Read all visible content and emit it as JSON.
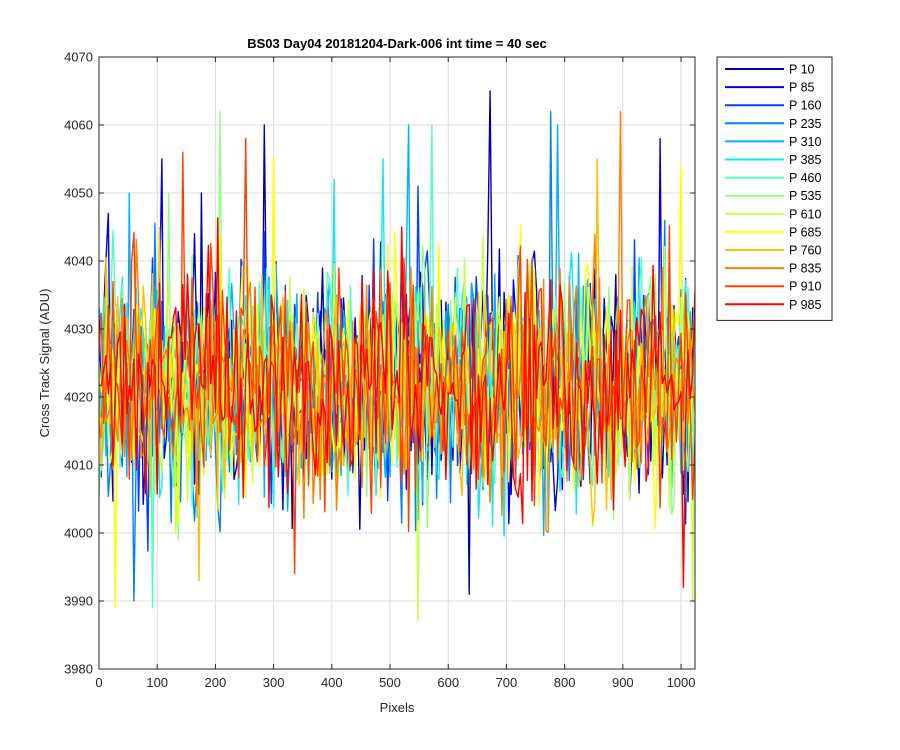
{
  "chart_data": {
    "type": "line",
    "title": "BS03 Day04 20181204-Dark-006 int time = 40 sec",
    "xlabel": "Pixels",
    "ylabel": "Cross Track Signal (ADU)",
    "xlim": [
      0,
      1024
    ],
    "ylim": [
      3980,
      4070
    ],
    "xticks": [
      0,
      100,
      200,
      300,
      400,
      500,
      600,
      700,
      800,
      900,
      1000
    ],
    "yticks": [
      3980,
      3990,
      4000,
      4010,
      4020,
      4030,
      4040,
      4050,
      4060,
      4070
    ],
    "grid": true,
    "legend_position": "outside-top-right",
    "x_step": 4,
    "series": [
      {
        "name": "P 10",
        "color": "#0000a8",
        "mean": 4022,
        "spread": 8.5,
        "spikes": [
          [
            672,
            4065
          ],
          [
            636,
            3991
          ],
          [
            284,
            4060
          ],
          [
            176,
            4050
          ]
        ]
      },
      {
        "name": "P 85",
        "color": "#0000e0",
        "mean": 4022,
        "spread": 8.5,
        "spikes": [
          [
            16,
            4047
          ],
          [
            964,
            4058
          ],
          [
            108,
            4055
          ]
        ]
      },
      {
        "name": "P 160",
        "color": "#0040ff",
        "mean": 4022,
        "spread": 8.5,
        "spikes": [
          [
            548,
            4051
          ],
          [
            912,
            4005
          ]
        ]
      },
      {
        "name": "P 235",
        "color": "#0080ff",
        "mean": 4022,
        "spread": 8.5,
        "spikes": [
          [
            776,
            4062
          ],
          [
            60,
            3990
          ]
        ]
      },
      {
        "name": "P 310",
        "color": "#00b0ff",
        "mean": 4022,
        "spread": 8.5,
        "spikes": [
          [
            532,
            4060
          ],
          [
            788,
            4060
          ],
          [
            52,
            4050
          ]
        ]
      },
      {
        "name": "P 385",
        "color": "#10e8f0",
        "mean": 4022,
        "spread": 8.5,
        "spikes": [
          [
            404,
            4052
          ],
          [
            488,
            4055
          ]
        ]
      },
      {
        "name": "P 460",
        "color": "#50ffc0",
        "mean": 4022,
        "spread": 8.5,
        "spikes": [
          [
            92,
            3989
          ],
          [
            572,
            4060
          ]
        ]
      },
      {
        "name": "P 535",
        "color": "#90ff80",
        "mean": 4022,
        "spread": 8.5,
        "spikes": [
          [
            208,
            4062
          ],
          [
            120,
            4050
          ]
        ]
      },
      {
        "name": "P 610",
        "color": "#c8ff40",
        "mean": 4022,
        "spread": 8.5,
        "spikes": [
          [
            548,
            3987
          ],
          [
            1020,
            3990
          ]
        ]
      },
      {
        "name": "P 685",
        "color": "#ffff00",
        "mean": 4022,
        "spread": 8.5,
        "spikes": [
          [
            28,
            3989
          ],
          [
            300,
            4055
          ],
          [
            1000,
            4054
          ]
        ]
      },
      {
        "name": "P 760",
        "color": "#ffc000",
        "mean": 4022,
        "spread": 8.5,
        "spikes": [
          [
            172,
            3993
          ],
          [
            856,
            4055
          ]
        ]
      },
      {
        "name": "P 835",
        "color": "#ff8000",
        "mean": 4022,
        "spread": 8.5,
        "spikes": [
          [
            896,
            4062
          ],
          [
            168,
            4004
          ]
        ]
      },
      {
        "name": "P 910",
        "color": "#ff4000",
        "mean": 4022,
        "spread": 8.5,
        "spikes": [
          [
            252,
            4058
          ],
          [
            144,
            4056
          ],
          [
            336,
            3994
          ]
        ]
      },
      {
        "name": "P 985",
        "color": "#ff0000",
        "mean": 4022,
        "spread": 8.5,
        "spikes": [
          [
            1004,
            3992
          ],
          [
            24,
            4010
          ],
          [
            520,
            4045
          ]
        ]
      }
    ]
  }
}
